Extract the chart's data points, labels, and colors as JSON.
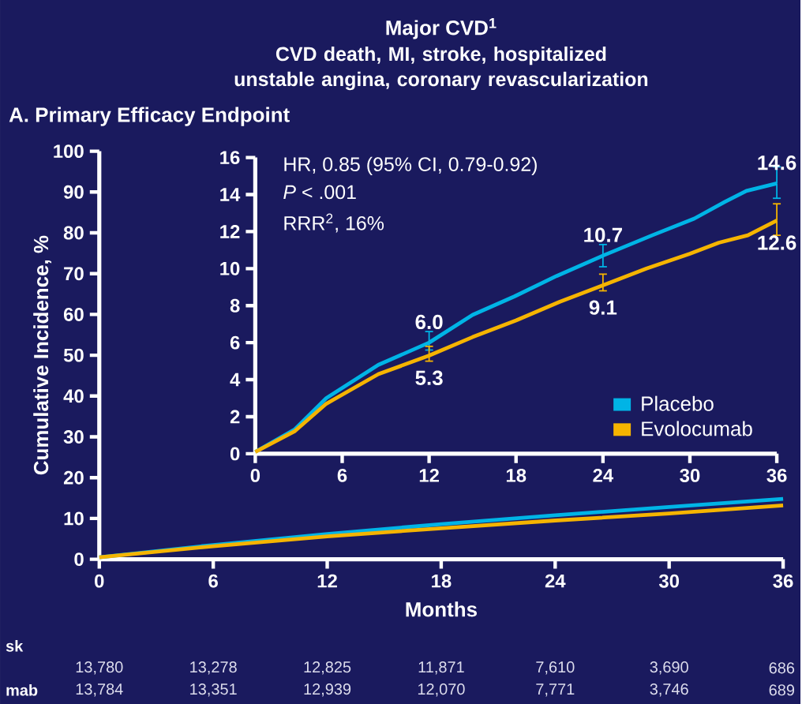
{
  "chart_data": [
    {
      "type": "line",
      "title": "Major CVD$^{1}$",
      "subtitle": "CVD death, MI, stroke, hospitalized unstable angina, coronary revascularization",
      "xlabel": "Months",
      "ylabel": "Cumulative Incidence, %",
      "xlim": [
        0,
        36
      ],
      "ylim": [
        0,
        100
      ],
      "xticks": [
        0,
        6,
        12,
        18,
        24,
        30,
        36
      ],
      "yticks": [
        0,
        10,
        20,
        30,
        40,
        50,
        60,
        70,
        80,
        90,
        100
      ],
      "x": [
        0,
        6,
        12,
        18,
        24,
        30,
        36
      ],
      "series": [
        {
          "color": "#00b4e6",
          "values": [
            0.5,
            3.5,
            6.2,
            8.6,
            10.8,
            12.8,
            14.8
          ]
        },
        {
          "color": "#f5b400",
          "values": [
            0.5,
            3.2,
            5.6,
            7.6,
            9.5,
            11.2,
            13.2
          ]
        }
      ],
      "annotations": [
        "A. Primary Efficacy Endpoint",
        "sk",
        "mab",
        "13,780",
        "13,278",
        "12,825",
        "11,871",
        "7,610",
        "3,690",
        "686",
        "13,784",
        "13,351",
        "12,939",
        "12,070",
        "7,771",
        "3,746",
        "689"
      ]
    },
    {
      "type": "line",
      "xlim": [
        0,
        36
      ],
      "ylim": [
        0,
        16
      ],
      "xticks": [
        0,
        6,
        12,
        18,
        24,
        30,
        36
      ],
      "yticks": [
        0,
        2,
        4,
        6,
        8,
        10,
        12,
        14,
        16
      ],
      "legend": "bottom right",
      "series": [
        {
          "name": "Placebo",
          "color": "#00b4e6",
          "x": [
            0,
            2.7,
            4.9,
            8.5,
            12,
            15,
            17.9,
            20.8,
            24,
            27.4,
            30.3,
            32.4,
            33.9,
            36
          ],
          "values": [
            0.1,
            1.3,
            3.0,
            4.8,
            6.0,
            7.5,
            8.5,
            9.6,
            10.7,
            11.8,
            12.7,
            13.6,
            14.2,
            14.6
          ],
          "errors": [
            null,
            null,
            null,
            null,
            [
              5.6,
              6.6
            ],
            null,
            null,
            null,
            [
              10.1,
              11.3
            ],
            null,
            null,
            null,
            null,
            [
              13.8,
              15.5
            ]
          ],
          "value_labels": [
            null,
            null,
            null,
            null,
            "6.0",
            null,
            null,
            null,
            "10.7",
            null,
            null,
            null,
            null,
            "14.6"
          ]
        },
        {
          "name": "Evolocumab",
          "color": "#f5b400",
          "x": [
            0,
            2.7,
            4.9,
            8.5,
            12,
            15,
            18,
            21,
            24,
            27,
            30,
            32,
            34,
            36
          ],
          "values": [
            0.1,
            1.2,
            2.7,
            4.3,
            5.3,
            6.3,
            7.2,
            8.2,
            9.1,
            10.0,
            10.8,
            11.4,
            11.8,
            12.6
          ],
          "errors": [
            null,
            null,
            null,
            null,
            [
              5.0,
              5.8
            ],
            null,
            null,
            null,
            [
              8.8,
              9.7
            ],
            null,
            null,
            null,
            null,
            [
              11.8,
              13.5
            ]
          ],
          "value_labels": [
            null,
            null,
            null,
            null,
            "5.3",
            null,
            null,
            null,
            "9.1",
            null,
            null,
            null,
            null,
            "12.6"
          ]
        }
      ],
      "annotations": [
        "HR, 0.85 (95% CI, 0.79-0.92)",
        "*P* < .001",
        "RRR$^{2}$, 16%"
      ]
    }
  ]
}
